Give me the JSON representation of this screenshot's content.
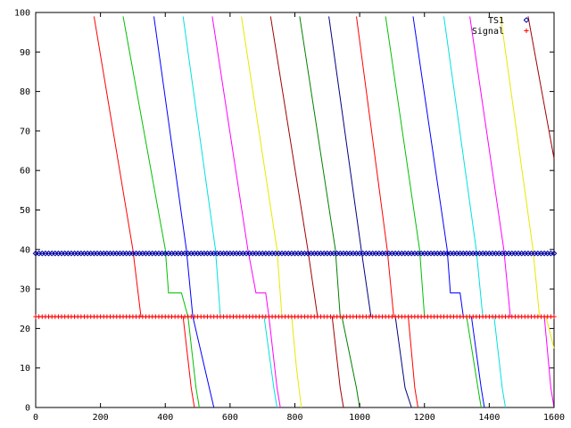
{
  "chart_data": {
    "type": "line",
    "title": "",
    "xlabel": "",
    "ylabel": "",
    "xlim": [
      0,
      1600
    ],
    "ylim": [
      0,
      100
    ],
    "xticks": [
      0,
      200,
      400,
      600,
      800,
      1000,
      1200,
      1400,
      1600
    ],
    "yticks": [
      0,
      10,
      20,
      30,
      40,
      50,
      60,
      70,
      80,
      90,
      100
    ],
    "grid": false,
    "legend_position": "top-right",
    "legend": [
      {
        "name": "TS1",
        "marker": "diamond",
        "color": "#0000a0"
      },
      {
        "name": "Signal",
        "marker": "plus",
        "color": "#ff0000"
      }
    ],
    "horizontal_series": [
      {
        "name": "TS1",
        "y": 39,
        "color": "#0000a0",
        "marker": "diamond",
        "x_start": 0,
        "x_end": 1600,
        "x_step": 10
      },
      {
        "name": "Signal",
        "y": 23,
        "color": "#ff0000",
        "marker": "plus",
        "x_start": 0,
        "x_end": 1600,
        "x_step": 10
      }
    ],
    "series": [
      {
        "color": "#ff0000",
        "x": [
          180,
          300,
          325
        ],
        "y": [
          99,
          40,
          23
        ]
      },
      {
        "color": "#00c000",
        "x": [
          270,
          400,
          410,
          450,
          470
        ],
        "y": [
          99,
          40,
          29,
          29,
          23
        ]
      },
      {
        "color": "#0000ff",
        "x": [
          365,
          465,
          485
        ],
        "y": [
          99,
          40,
          23
        ]
      },
      {
        "color": "#00e0e0",
        "x": [
          455,
          555,
          570
        ],
        "y": [
          99,
          40,
          23
        ]
      },
      {
        "color": "#ff00ff",
        "x": [
          545,
          655,
          680,
          710,
          720
        ],
        "y": [
          99,
          40,
          29,
          29,
          23
        ]
      },
      {
        "color": "#e8e800",
        "x": [
          635,
          745,
          760
        ],
        "y": [
          99,
          40,
          23
        ]
      },
      {
        "color": "#a00000",
        "x": [
          725,
          840,
          870
        ],
        "y": [
          99,
          40,
          23
        ]
      },
      {
        "color": "#008000",
        "x": [
          815,
          925,
          940
        ],
        "y": [
          99,
          40,
          23
        ]
      },
      {
        "color": "#000080",
        "x": [
          905,
          1005,
          1035
        ],
        "y": [
          99,
          40,
          23
        ]
      },
      {
        "color": "#ff0000",
        "x": [
          990,
          1085,
          1105
        ],
        "y": [
          99,
          40,
          23
        ]
      },
      {
        "color": "#00c000",
        "x": [
          1080,
          1185,
          1200
        ],
        "y": [
          99,
          40,
          23
        ]
      },
      {
        "color": "#0000ff",
        "x": [
          1165,
          1270,
          1280,
          1310,
          1320
        ],
        "y": [
          99,
          40,
          29,
          29,
          23
        ]
      },
      {
        "color": "#00e0e0",
        "x": [
          1260,
          1360,
          1380
        ],
        "y": [
          99,
          40,
          23
        ]
      },
      {
        "color": "#ff00ff",
        "x": [
          1340,
          1445,
          1465
        ],
        "y": [
          99,
          40,
          23
        ]
      },
      {
        "color": "#e8e800",
        "x": [
          1435,
          1535,
          1555
        ],
        "y": [
          99,
          40,
          23
        ]
      },
      {
        "color": "#a00000",
        "x": [
          1520,
          1600
        ],
        "y": [
          99,
          63
        ]
      },
      {
        "color": "#ff0000",
        "x": [
          455,
          480,
          490
        ],
        "y": [
          23,
          5,
          0
        ]
      },
      {
        "color": "#00c000",
        "x": [
          470,
          495,
          505
        ],
        "y": [
          23,
          5,
          0
        ]
      },
      {
        "color": "#0000ff",
        "x": [
          485,
          530,
          550
        ],
        "y": [
          23,
          7,
          0
        ]
      },
      {
        "color": "#00e0e0",
        "x": [
          705,
          735,
          745
        ],
        "y": [
          23,
          5,
          0
        ]
      },
      {
        "color": "#ff00ff",
        "x": [
          720,
          745,
          755
        ],
        "y": [
          23,
          5,
          0
        ]
      },
      {
        "color": "#e8e800",
        "x": [
          790,
          805,
          820
        ],
        "y": [
          23,
          10,
          0
        ]
      },
      {
        "color": "#a00000",
        "x": [
          915,
          940,
          950
        ],
        "y": [
          23,
          5,
          0
        ]
      },
      {
        "color": "#008000",
        "x": [
          945,
          990,
          1000
        ],
        "y": [
          23,
          5,
          0
        ]
      },
      {
        "color": "#000080",
        "x": [
          1110,
          1140,
          1160
        ],
        "y": [
          23,
          5,
          0
        ]
      },
      {
        "color": "#ff0000",
        "x": [
          1150,
          1170,
          1180
        ],
        "y": [
          23,
          5,
          0
        ]
      },
      {
        "color": "#00c000",
        "x": [
          1330,
          1365,
          1375
        ],
        "y": [
          23,
          5,
          0
        ]
      },
      {
        "color": "#0000ff",
        "x": [
          1345,
          1375,
          1385
        ],
        "y": [
          23,
          5,
          0
        ]
      },
      {
        "color": "#00e0e0",
        "x": [
          1415,
          1440,
          1450
        ],
        "y": [
          23,
          5,
          0
        ]
      },
      {
        "color": "#ff00ff",
        "x": [
          1570,
          1590,
          1600
        ],
        "y": [
          23,
          5,
          0
        ]
      },
      {
        "color": "#e8e800",
        "x": [
          1575,
          1600
        ],
        "y": [
          23,
          15
        ]
      }
    ]
  }
}
